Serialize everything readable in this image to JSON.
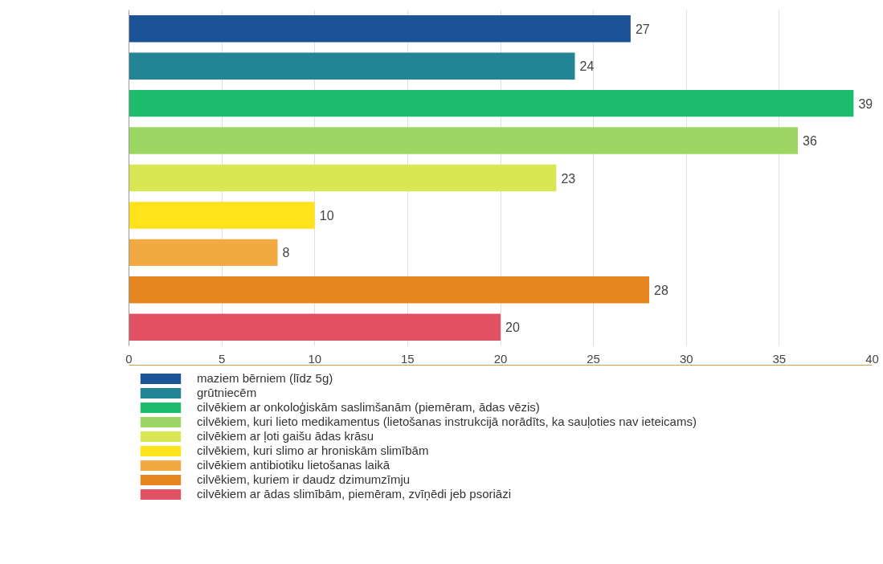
{
  "chart_data": {
    "type": "bar",
    "orientation": "horizontal",
    "categories": [
      null,
      null,
      null,
      null,
      null,
      null,
      null,
      null,
      null
    ],
    "series": [
      {
        "name": "maziem bērniem (līdz 5g)",
        "color": "#1b5496",
        "values": [
          27,
          null,
          null,
          null,
          null,
          null,
          null,
          null,
          null
        ]
      },
      {
        "name": "grūtniecēm",
        "color": "#238496",
        "values": [
          null,
          24,
          null,
          null,
          null,
          null,
          null,
          null,
          null
        ]
      },
      {
        "name": "cilvēkiem ar onkoloģiskām saslimšanām (piemēram, ādas vēzis)",
        "color": "#1dbb6c",
        "values": [
          null,
          null,
          39,
          null,
          null,
          null,
          null,
          null,
          null
        ]
      },
      {
        "name": "cilvēkiem, kuri lieto medikamentus (lietošanas instrukcijā norādīts, ka sauļoties nav ieteicams)",
        "color": "#9cd764",
        "values": [
          null,
          null,
          null,
          36,
          null,
          null,
          null,
          null,
          null
        ]
      },
      {
        "name": "cilvēkiem ar ļoti gaišu ādas krāsu",
        "color": "#dae755",
        "values": [
          null,
          null,
          null,
          null,
          23,
          null,
          null,
          null,
          null
        ]
      },
      {
        "name": "cilvēkiem, kuri slimo ar hroniskām slimībām",
        "color": "#fde21c",
        "values": [
          null,
          null,
          null,
          null,
          null,
          10,
          null,
          null,
          null
        ]
      },
      {
        "name": "cilvēkiem antibiotiku lietošanas laikā",
        "color": "#f1aa41",
        "values": [
          null,
          null,
          null,
          null,
          null,
          null,
          8,
          null,
          null
        ]
      },
      {
        "name": "cilvēkiem, kuriem ir daudz dzimumzīmju",
        "color": "#e5861f",
        "values": [
          null,
          null,
          null,
          null,
          null,
          null,
          null,
          28,
          null
        ]
      },
      {
        "name": "cilvēkiem ar ādas slimībām, piemēram, zvīņēdi jeb psoriāzi",
        "color": "#e35264",
        "values": [
          null,
          null,
          null,
          null,
          null,
          null,
          null,
          null,
          20
        ]
      }
    ],
    "xlim": [
      0,
      40
    ],
    "xticks": [
      0,
      5,
      10,
      15,
      20,
      25,
      30,
      35,
      40
    ],
    "grid": "x",
    "legend": "bottom",
    "data_labels": true
  }
}
